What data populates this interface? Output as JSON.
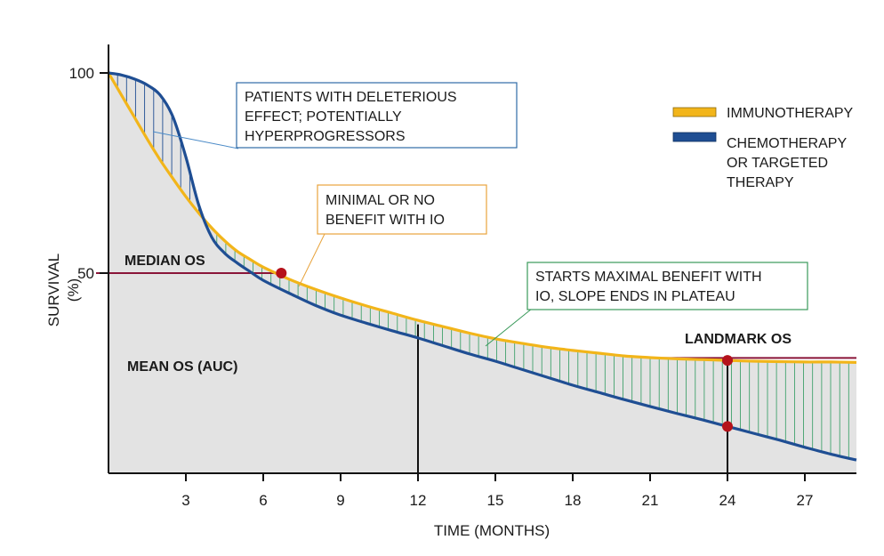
{
  "chart_data": {
    "type": "line",
    "title": "",
    "xlabel": "TIME (MONTHS)",
    "ylabel": [
      "SURVIVAL",
      "(%)"
    ],
    "xlim": [
      0,
      29
    ],
    "ylim": [
      0,
      100
    ],
    "xticks": [
      3,
      6,
      9,
      12,
      15,
      18,
      21,
      24,
      27
    ],
    "yticks": [
      50,
      100
    ],
    "legend_placement": "top-right",
    "series": [
      {
        "name": "IMMUNOTHERAPY",
        "color": "#f2b51a",
        "x": [
          0,
          0.5,
          1,
          1.5,
          2,
          2.5,
          3,
          3.5,
          4,
          4.5,
          5,
          5.5,
          6,
          7,
          8,
          9,
          10,
          11,
          12,
          13,
          14,
          15,
          16,
          17,
          18,
          19,
          20,
          21,
          22,
          23,
          24,
          25,
          26,
          27,
          28,
          29
        ],
        "y": [
          100,
          94.5,
          89,
          83.5,
          78.3,
          73.6,
          69.1,
          65,
          61.3,
          58.1,
          55.4,
          53.4,
          51.5,
          48.5,
          46,
          43.8,
          41.8,
          40,
          38.2,
          36.6,
          35,
          33.6,
          32.5,
          31.5,
          30.7,
          30,
          29.3,
          28.9,
          28.6,
          28.4,
          28.2,
          28,
          27.9,
          27.8,
          27.8,
          27.7
        ]
      },
      {
        "name": "CHEMOTHERAPY OR TARGETED THERAPY",
        "color": "#1f4e93",
        "x": [
          0,
          0.5,
          1,
          1.5,
          2,
          2.5,
          3,
          3.5,
          4,
          4.5,
          5,
          5.5,
          6,
          7,
          8,
          9,
          10,
          11,
          12,
          13,
          14,
          15,
          16,
          17,
          18,
          19,
          20,
          21,
          22,
          23,
          24,
          25,
          26,
          27,
          28,
          29
        ],
        "y": [
          100,
          99.5,
          98.5,
          97,
          94.5,
          89,
          79,
          67,
          59,
          55,
          52.5,
          50.3,
          48.2,
          45,
          42,
          39.5,
          37.5,
          35.6,
          33.8,
          31.8,
          29.8,
          28,
          26,
          24,
          22,
          20.2,
          18.4,
          16.7,
          15,
          13.4,
          11.7,
          10,
          8.3,
          6.5,
          4.8,
          3.3
        ]
      }
    ],
    "reference_lines": {
      "median_os": {
        "label": "MEDIAN OS",
        "y": 50,
        "x_point": 6.7
      },
      "landmark_x": 24,
      "landmark_os": {
        "label": "LANDMARK OS",
        "y_immunotherapy": 28.2,
        "y_chemotherapy": 11.7
      },
      "month_12_marker": 12
    },
    "annotations": {
      "deleterious": [
        "PATIENTS WITH DELETERIOUS",
        "EFFECT; POTENTIALLY",
        "HYPERPROGRESSORS"
      ],
      "minimal": [
        "MINIMAL OR NO",
        "BENEFIT WITH IO"
      ],
      "maximal": [
        "STARTS MAXIMAL BENEFIT WITH",
        "IO, SLOPE ENDS IN PLATEAU"
      ],
      "mean_os": "MEAN OS (AUC)",
      "median_os": "MEDIAN OS",
      "landmark_os": "LANDMARK OS"
    },
    "legend": [
      {
        "label": [
          "IMMUNOTHERAPY"
        ],
        "color": "#f2b51a"
      },
      {
        "label": [
          "CHEMOTHERAPY",
          "OR TARGETED",
          "THERAPY"
        ],
        "color": "#1f4e93"
      }
    ],
    "colors": {
      "auc_fill": "#e3e3e3",
      "hatch_deleterious": "#1f4e93",
      "hatch_benefit": "#2e9a5e",
      "median_line": "#8a1538",
      "marker": "#b5121b",
      "box_blue": "#2f6aa6",
      "box_orange": "#e8a33c",
      "box_green": "#3a9a5a"
    }
  }
}
